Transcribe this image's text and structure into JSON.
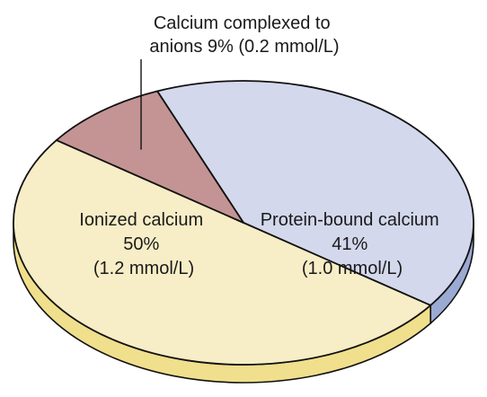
{
  "chart_data": {
    "type": "pie",
    "style": "3d-tilted",
    "slices": [
      {
        "name": "Protein-bound calcium",
        "percent": 41,
        "value_mmol_per_l": 1.0,
        "label_lines": [
          "Protein-bound calcium",
          "41%",
          "(1.0 mmol/L)"
        ],
        "color": "#d3d8ec",
        "side_color": "#9aaad3"
      },
      {
        "name": "Ionized calcium",
        "percent": 50,
        "value_mmol_per_l": 1.2,
        "label_lines": [
          "Ionized calcium",
          "50%",
          "(1.2 mmol/L)"
        ],
        "color": "#f7edc6",
        "side_color": "#f0df8c"
      },
      {
        "name": "Calcium complexed to anions",
        "percent": 9,
        "value_mmol_per_l": 0.2,
        "label_lines": [
          "Calcium complexed to",
          "anions 9% (0.2 mmol/L)"
        ],
        "color": "#c49494",
        "side_color": "#a87474"
      }
    ],
    "outline_color": "#111111"
  }
}
